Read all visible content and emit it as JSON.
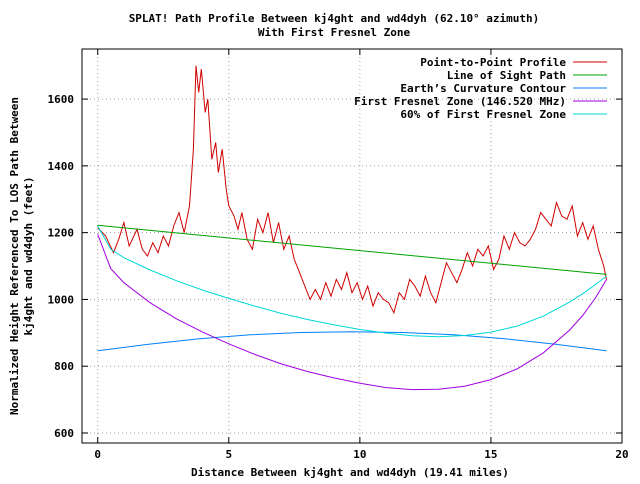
{
  "chart_data": {
    "type": "line",
    "title": "SPLAT! Path Profile Between kj4ght and wd4dyh (62.10° azimuth)",
    "subtitle": "With First Fresnel Zone",
    "xlabel": "Distance Between kj4ght and wd4dyh (19.41 miles)",
    "ylabel_line1": "Normalized Height Referenced To LOS Path Between",
    "ylabel_line2": "kj4ght and wd4dyh (feet)",
    "xlim": [
      -0.6,
      20
    ],
    "ylim": [
      570,
      1750
    ],
    "x_ticks": [
      0,
      5,
      10,
      15,
      20
    ],
    "y_ticks": [
      600,
      800,
      1000,
      1200,
      1400,
      1600
    ],
    "grid": true,
    "legend_position": "top-right",
    "series": [
      {
        "name": "Point-to-Point Profile",
        "color": "#d00000",
        "x": [
          0,
          0.3,
          0.6,
          0.8,
          1.0,
          1.2,
          1.5,
          1.7,
          1.9,
          2.1,
          2.3,
          2.5,
          2.7,
          2.9,
          3.1,
          3.3,
          3.5,
          3.65,
          3.75,
          3.85,
          3.95,
          4.1,
          4.2,
          4.35,
          4.5,
          4.6,
          4.75,
          4.9,
          5.0,
          5.2,
          5.35,
          5.5,
          5.7,
          5.9,
          6.1,
          6.3,
          6.5,
          6.7,
          6.9,
          7.1,
          7.3,
          7.5,
          7.7,
          7.9,
          8.1,
          8.3,
          8.5,
          8.7,
          8.9,
          9.1,
          9.3,
          9.5,
          9.7,
          9.9,
          10.1,
          10.3,
          10.5,
          10.7,
          10.9,
          11.1,
          11.3,
          11.5,
          11.7,
          11.9,
          12.1,
          12.3,
          12.5,
          12.7,
          12.9,
          13.1,
          13.3,
          13.5,
          13.7,
          13.9,
          14.1,
          14.3,
          14.5,
          14.7,
          14.9,
          15.1,
          15.3,
          15.5,
          15.7,
          15.9,
          16.1,
          16.3,
          16.5,
          16.7,
          16.9,
          17.1,
          17.3,
          17.5,
          17.7,
          17.9,
          18.1,
          18.3,
          18.5,
          18.7,
          18.9,
          19.1,
          19.3,
          19.41
        ],
        "values": [
          1215,
          1190,
          1140,
          1180,
          1230,
          1160,
          1210,
          1150,
          1130,
          1170,
          1140,
          1190,
          1160,
          1220,
          1260,
          1200,
          1280,
          1450,
          1700,
          1620,
          1690,
          1560,
          1600,
          1420,
          1470,
          1380,
          1450,
          1330,
          1280,
          1250,
          1210,
          1260,
          1180,
          1150,
          1240,
          1200,
          1260,
          1170,
          1230,
          1150,
          1190,
          1120,
          1080,
          1040,
          1000,
          1030,
          1000,
          1050,
          1010,
          1060,
          1030,
          1080,
          1020,
          1050,
          1000,
          1040,
          980,
          1020,
          1000,
          990,
          960,
          1020,
          1000,
          1060,
          1040,
          1010,
          1070,
          1020,
          990,
          1050,
          1110,
          1080,
          1050,
          1090,
          1140,
          1100,
          1150,
          1130,
          1160,
          1090,
          1120,
          1190,
          1150,
          1200,
          1170,
          1160,
          1180,
          1210,
          1260,
          1240,
          1220,
          1290,
          1250,
          1240,
          1280,
          1190,
          1230,
          1180,
          1220,
          1150,
          1100,
          1060
        ]
      },
      {
        "name": "Line of Sight Path",
        "color": "#00a000",
        "x": [
          0,
          19.41
        ],
        "values": [
          1222,
          1075
        ]
      },
      {
        "name": "Earth’s Curvature Contour",
        "color": "#0080ff",
        "x": [
          0,
          1.94,
          3.88,
          5.82,
          7.76,
          9.71,
          11.65,
          13.59,
          15.53,
          17.47,
          19.41
        ],
        "values": [
          846,
          866,
          882,
          894,
          901,
          903,
          901,
          894,
          882,
          866,
          846
        ]
      },
      {
        "name": "First Fresnel Zone (146.520 MHz)",
        "color": "#a000e0",
        "x": [
          0,
          0.5,
          1,
          2,
          3,
          4,
          5,
          6,
          7,
          8,
          9,
          10,
          11,
          12,
          13,
          14,
          15,
          16,
          17,
          18,
          18.5,
          19,
          19.41
        ],
        "values": [
          1195,
          1092,
          1050,
          990,
          942,
          902,
          867,
          835,
          807,
          784,
          765,
          749,
          736,
          730,
          731,
          740,
          760,
          792,
          840,
          908,
          952,
          1006,
          1060
        ]
      },
      {
        "name": "60% of First Fresnel Zone",
        "color": "#00d8d8",
        "x": [
          0,
          0.5,
          1,
          2,
          3,
          4,
          5,
          6,
          7,
          8,
          9,
          10,
          11,
          12,
          13,
          14,
          15,
          16,
          17,
          18,
          18.5,
          19,
          19.41
        ],
        "values": [
          1220,
          1150,
          1125,
          1088,
          1056,
          1028,
          1003,
          980,
          958,
          940,
          924,
          910,
          899,
          891,
          888,
          892,
          902,
          920,
          950,
          992,
          1017,
          1045,
          1070
        ]
      }
    ]
  }
}
